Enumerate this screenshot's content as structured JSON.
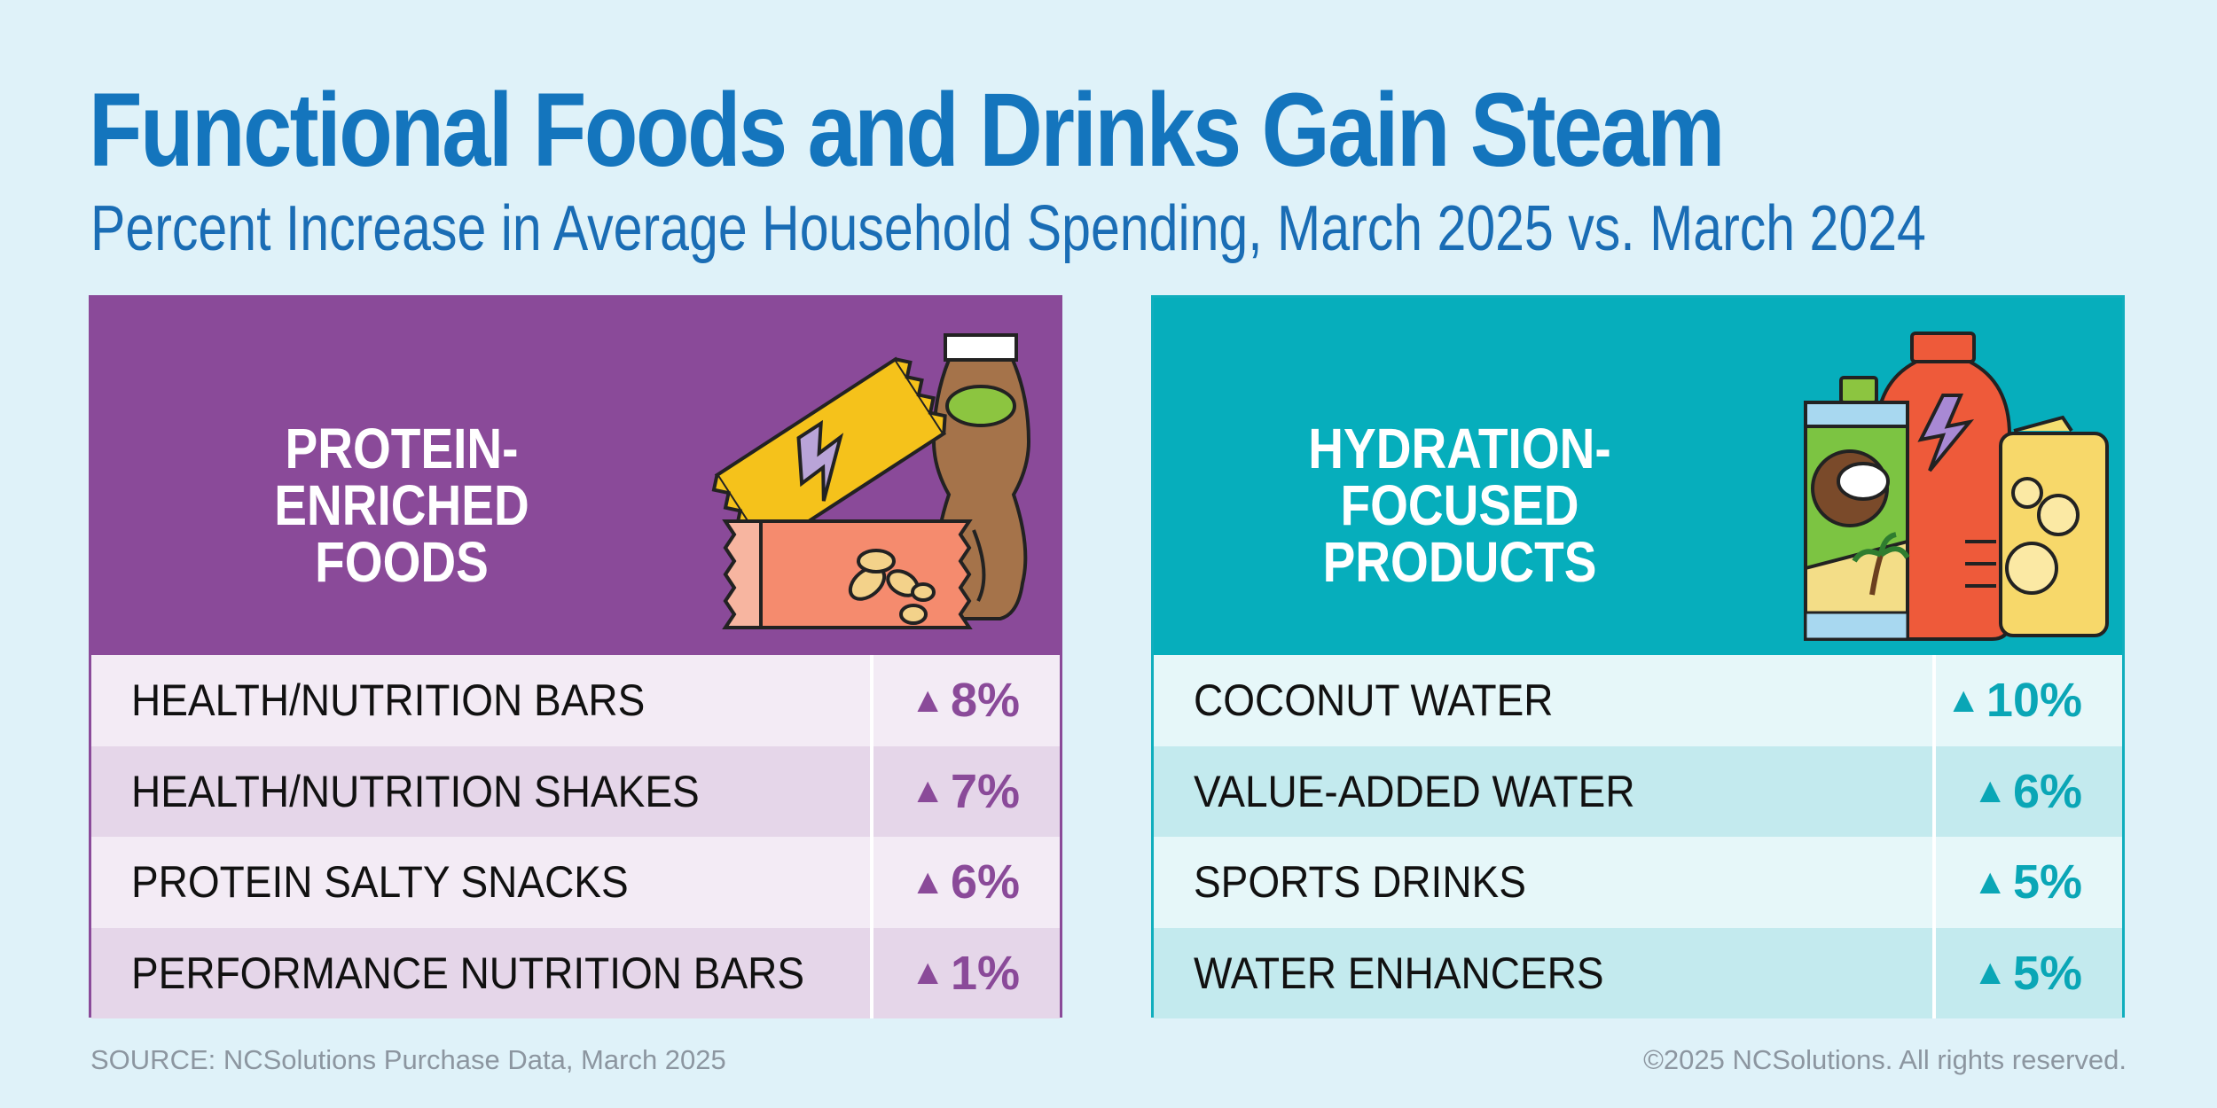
{
  "title": "Functional Foods and Drinks Gain Steam",
  "subtitle": "Percent Increase in Average Household Spending, March 2025 vs. March 2024",
  "chart_data": [
    {
      "type": "table",
      "title": "PROTEIN-ENRICHED FOODS",
      "title_line1": "PROTEIN-ENRICHED",
      "title_line2": "FOODS",
      "accent_color": "#8a4a99",
      "categories": [
        "HEALTH/NUTRITION BARS",
        "HEALTH/NUTRITION SHAKES",
        "PROTEIN SALTY SNACKS",
        "PERFORMANCE NUTRITION BARS"
      ],
      "values": [
        8,
        7,
        6,
        1
      ],
      "value_labels": [
        "8%",
        "7%",
        "6%",
        "1%"
      ],
      "unit": "%"
    },
    {
      "type": "table",
      "title": "HYDRATION-FOCUSED PRODUCTS",
      "title_line1": "HYDRATION-FOCUSED",
      "title_line2": "PRODUCTS",
      "accent_color": "#06aebc",
      "categories": [
        "COCONUT WATER",
        "VALUE-ADDED WATER",
        "SPORTS DRINKS",
        "WATER ENHANCERS"
      ],
      "values": [
        10,
        6,
        5,
        5
      ],
      "value_labels": [
        "10%",
        "6%",
        "5%",
        "5%"
      ],
      "unit": "%"
    }
  ],
  "increase_symbol": "▲",
  "source": "SOURCE: NCSolutions Purchase Data, March 2025",
  "copyright": "©2025 NCSolutions. All rights reserved.",
  "icons": [
    "protein-bar-icon",
    "shake-bottle-icon",
    "snack-bag-icon",
    "coconut-water-carton-icon",
    "sports-drink-bottle-icon",
    "soda-can-icon"
  ]
}
